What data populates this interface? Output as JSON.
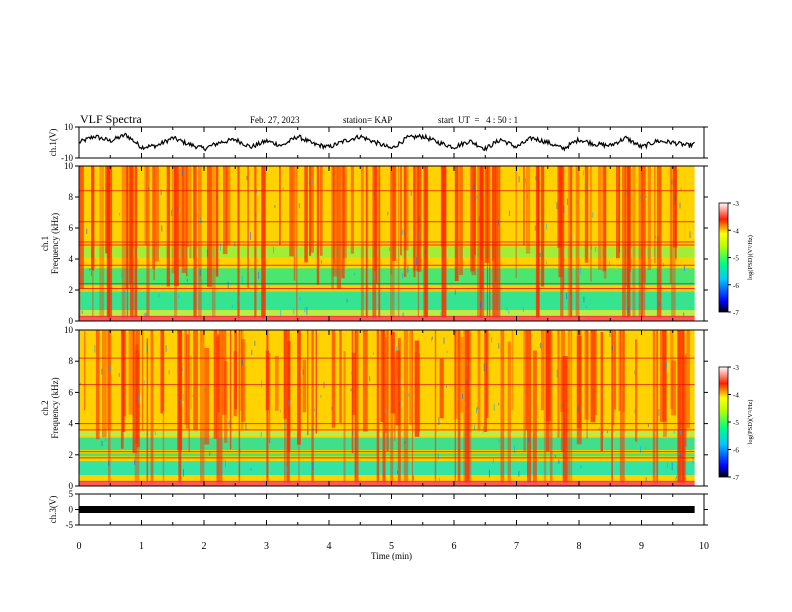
{
  "header": {
    "title": "VLF Spectra",
    "date": "Feb. 27, 2023",
    "station": "station= KAP",
    "start": "start  UT  =   4 : 50 : 1"
  },
  "chart_data": [
    {
      "type": "line",
      "panel": "ch1-waveform",
      "ylabel": "ch.1(V)",
      "ylim": [
        -10,
        10
      ],
      "yticks": [
        10,
        -10
      ],
      "x": [
        0,
        0.25,
        0.5,
        0.75,
        1.0,
        1.25,
        1.5,
        1.75,
        2.0,
        2.25,
        2.5,
        2.75,
        3.0,
        3.25,
        3.5,
        3.75,
        4.0,
        4.25,
        4.5,
        4.75,
        5.0,
        5.25,
        5.5,
        5.75,
        6.0,
        6.25,
        6.5,
        6.75,
        7.0,
        7.25,
        7.5,
        7.75,
        8.0,
        8.25,
        8.5,
        8.75,
        9.0,
        9.25,
        9.5,
        9.75,
        9.85
      ],
      "y": [
        0,
        4,
        1,
        5,
        -3,
        -2,
        3,
        -1,
        -4,
        0,
        2,
        -3,
        1,
        -2,
        4,
        -1,
        -3,
        1,
        4,
        0,
        -4,
        3,
        4,
        0,
        -3,
        1,
        -4,
        2,
        -3,
        3,
        0,
        -4,
        2,
        -1,
        -2,
        3,
        -3,
        1,
        0,
        -2,
        -1
      ]
    },
    {
      "type": "heatmap",
      "panel": "ch1-spectrogram",
      "ylabel": "ch.1\nFrequency  (kHz)",
      "ylim": [
        0,
        10
      ],
      "yticks": [
        0,
        2,
        4,
        6,
        8,
        10
      ],
      "colorbar": {
        "label": "log(PSD)(V²/Hz)",
        "ticks": [
          -3,
          -4,
          -5,
          -6,
          -7
        ],
        "range": [
          -7,
          -3
        ]
      }
    },
    {
      "type": "heatmap",
      "panel": "ch2-spectrogram",
      "ylabel": "ch.2\nFrequency  (kHz)",
      "ylim": [
        0,
        10
      ],
      "yticks": [
        0,
        2,
        4,
        6,
        8,
        10
      ],
      "colorbar": {
        "label": "log(PSD)(V²/Hz)",
        "ticks": [
          -3,
          -4,
          -5,
          -6,
          -7
        ],
        "range": [
          -7,
          -3
        ]
      }
    },
    {
      "type": "line",
      "panel": "ch3-waveform",
      "ylabel": "ch.3(V)",
      "ylim": [
        -5,
        5
      ],
      "yticks": [
        5,
        0,
        -5
      ],
      "x": [
        0,
        9.85
      ],
      "y": [
        0,
        0
      ]
    }
  ],
  "xaxis": {
    "label": "Time  (min)",
    "range": [
      0,
      10
    ],
    "ticks": [
      "0",
      "1",
      "2",
      "3",
      "4",
      "5",
      "6",
      "7",
      "8",
      "9",
      "10"
    ]
  },
  "colors": {
    "high": "#ff1e00",
    "mid": "#ffff00",
    "low": "#00e08c",
    "lowest": "#0000ff"
  }
}
